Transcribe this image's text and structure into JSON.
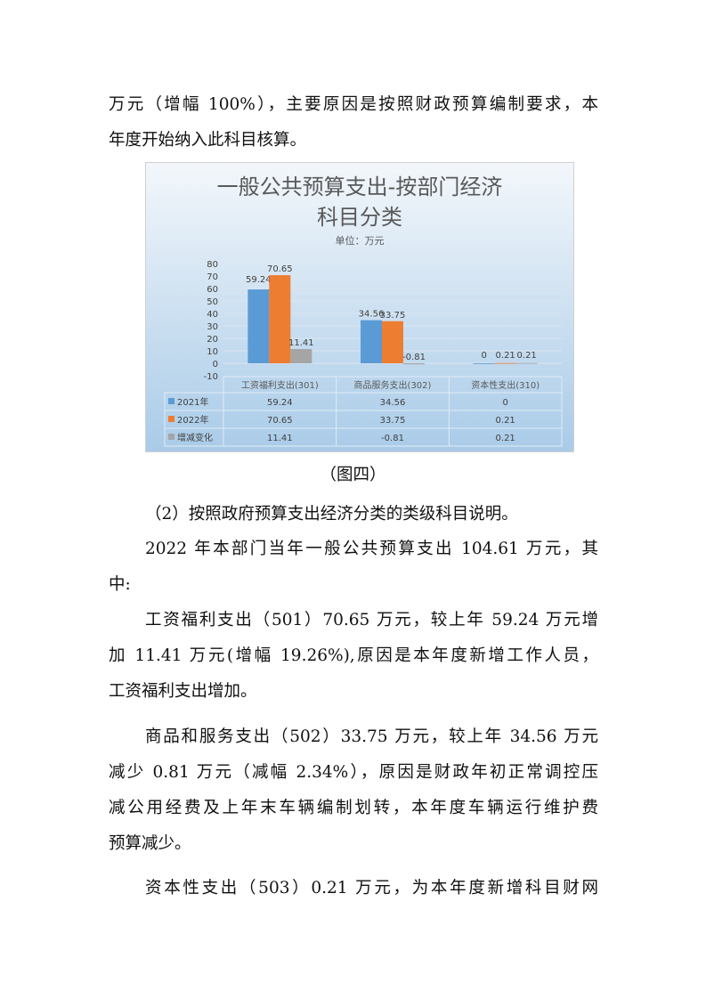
{
  "para_top": [
    "万元（增幅 100%），主要原因是按照财政预算编制要求，本",
    "年度开始纳入此科目核算。"
  ],
  "chart_data": {
    "type": "bar",
    "title": "一般公共预算支出-按部门经济科目分类",
    "title_lines": [
      "一般公共预算支出-按部门经济",
      "科目分类"
    ],
    "subtitle": "单位：万元",
    "categories": [
      "工资福利支出(301)",
      "商品服务支出(302)",
      "资本性支出(310)"
    ],
    "series": [
      {
        "name": "2021年",
        "values": [
          59.24,
          34.56,
          0
        ],
        "labels": [
          "59.24",
          "34.56",
          "0"
        ],
        "color": "#5b9bd5"
      },
      {
        "name": "2022年",
        "values": [
          70.65,
          33.75,
          0.21
        ],
        "labels": [
          "70.65",
          "33.75",
          "0.21"
        ],
        "color": "#ed7d31"
      },
      {
        "name": "增减变化",
        "values": [
          11.41,
          -0.81,
          0.21
        ],
        "labels": [
          "11.41",
          "-0.81",
          "0.21"
        ],
        "color": "#a5a5a5"
      }
    ],
    "ylim": [
      -10,
      80
    ],
    "yticks": [
      "80",
      "70",
      "60",
      "50",
      "40",
      "30",
      "20",
      "10",
      "0",
      "-10"
    ],
    "grid": true,
    "legend": "data-table"
  },
  "caption": "（图四）",
  "paragraphs": [
    {
      "lines": [
        "（2）按照政府预算支出经济分类的类级科目说明。"
      ],
      "indent": true
    },
    {
      "lines": [
        "2022 年本部门当年一般公共预算支出 104.61 万元，其",
        "中:"
      ],
      "indent": true
    },
    {
      "lines": [
        "工资福利支出（501）70.65 万元，较上年 59.24 万元增",
        "加 11.41 万元(增幅 19.26%),原因是本年度新增工作人员，",
        "工资福利支出增加。"
      ],
      "indent": true
    },
    {
      "lines": [
        "商品和服务支出（502）33.75 万元，较上年 34.56 万元",
        "减少 0.81 万元（减幅 2.34%），原因是财政年初正常调控压",
        "减公用经费及上年末车辆编制划转，本年度车辆运行维护费",
        "预算减少。"
      ],
      "indent": true
    },
    {
      "lines": [
        "资本性支出（503）0.21 万元，为本年度新增科目财网"
      ],
      "indent": true
    }
  ]
}
